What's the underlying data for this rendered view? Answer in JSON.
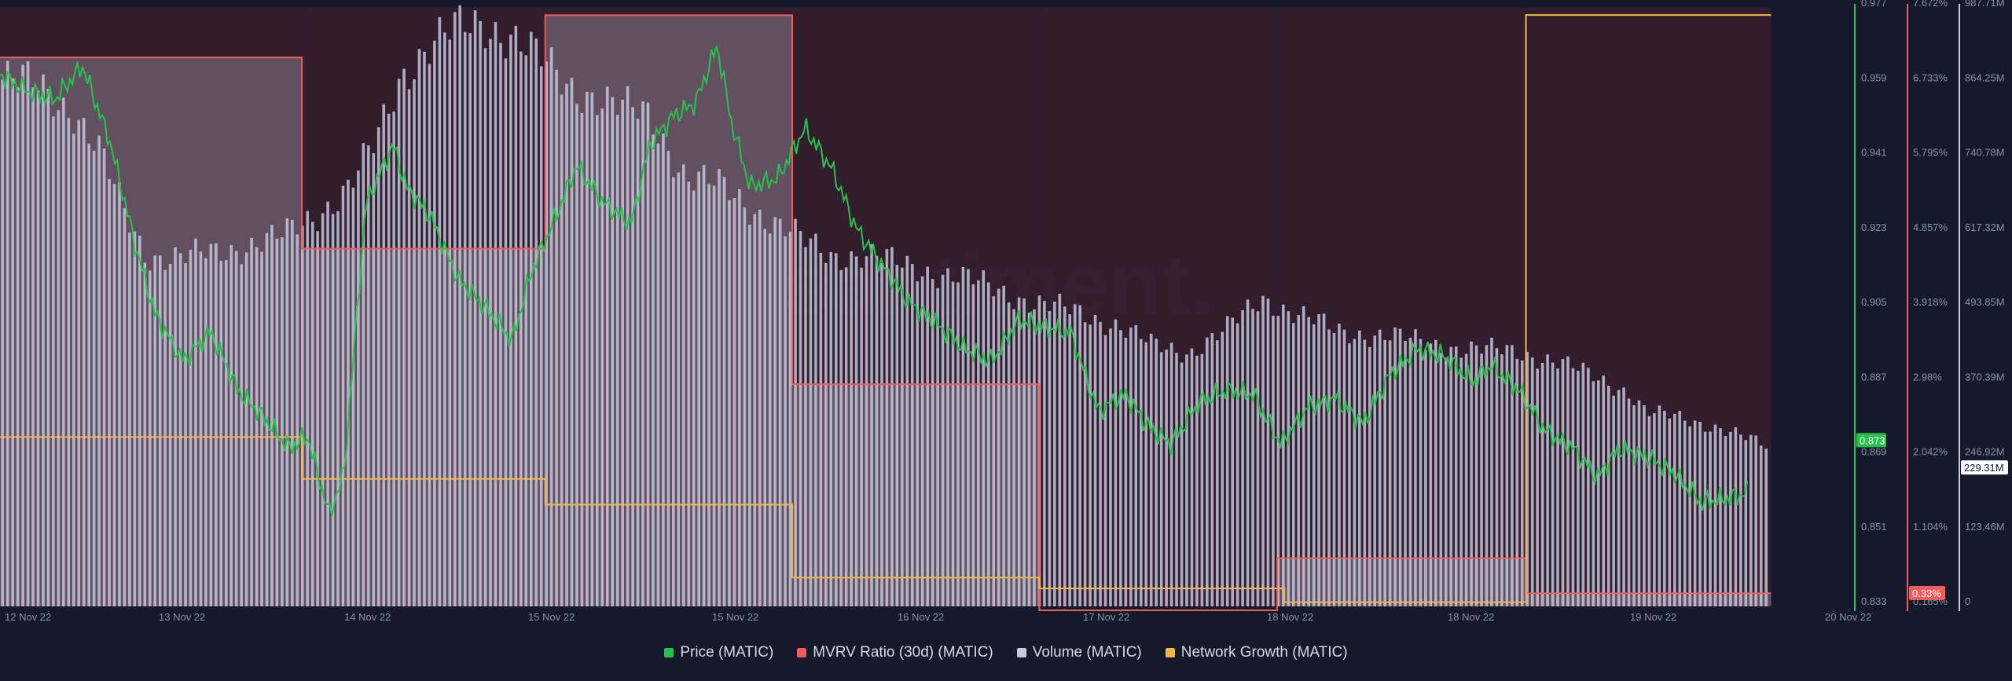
{
  "chart_data": {
    "type": "line",
    "watermark": "santiment.",
    "x_ticks": [
      "12 Nov 22",
      "13 Nov 22",
      "14 Nov 22",
      "15 Nov 22",
      "15 Nov 22",
      "16 Nov 22",
      "17 Nov 22",
      "18 Nov 22",
      "18 Nov 22",
      "19 Nov 22",
      "20 Nov 22"
    ],
    "axes": {
      "price": {
        "ticks": [
          "0.977",
          "0.959",
          "0.941",
          "0.923",
          "0.905",
          "0.887",
          "0.869",
          "0.851",
          "0.833"
        ],
        "ylim": [
          0.833,
          0.977
        ],
        "current_label": "0.873",
        "color": "#26c24d"
      },
      "mvrv": {
        "ticks": [
          "7.672%",
          "6.733%",
          "5.795%",
          "4.857%",
          "3.918%",
          "2.98%",
          "2.042%",
          "1.104%",
          "0.165%"
        ],
        "ylim": [
          0.165,
          7.672
        ],
        "current_label": "0.33%",
        "color": "#f25c5c"
      },
      "volume": {
        "ticks": [
          "987.71M",
          "864.25M",
          "740.78M",
          "617.32M",
          "493.85M",
          "370.39M",
          "246.92M",
          "123.46M",
          "0"
        ],
        "ylim": [
          0,
          987.71
        ],
        "current_label": "229.31M",
        "color": "#c8cbe0"
      }
    },
    "series": [
      {
        "name": "Price (MATIC)",
        "axis": "price",
        "color": "#26c24d",
        "x": [
          0.0,
          0.015,
          0.03,
          0.045,
          0.06,
          0.075,
          0.085,
          0.1,
          0.115,
          0.13,
          0.145,
          0.158,
          0.168,
          0.18,
          0.188,
          0.2,
          0.215,
          0.222,
          0.235,
          0.25,
          0.265,
          0.28,
          0.29,
          0.305,
          0.315,
          0.33,
          0.345,
          0.355,
          0.368,
          0.38,
          0.392,
          0.4,
          0.41,
          0.425,
          0.44,
          0.455,
          0.468,
          0.482,
          0.497,
          0.512,
          0.527,
          0.542,
          0.557,
          0.572,
          0.585,
          0.6,
          0.615,
          0.628,
          0.64,
          0.655,
          0.67,
          0.685,
          0.7,
          0.715,
          0.73,
          0.745,
          0.76,
          0.775,
          0.79,
          0.805,
          0.815,
          0.83,
          0.845,
          0.86,
          0.873,
          0.885,
          0.9,
          0.915,
          0.93,
          0.945,
          0.96,
          0.975,
          0.988,
          1.0
        ],
        "values": [
          0.961,
          0.957,
          0.955,
          0.963,
          0.945,
          0.918,
          0.903,
          0.892,
          0.899,
          0.885,
          0.878,
          0.871,
          0.874,
          0.855,
          0.865,
          0.93,
          0.944,
          0.934,
          0.927,
          0.912,
          0.905,
          0.897,
          0.913,
          0.928,
          0.939,
          0.93,
          0.925,
          0.944,
          0.951,
          0.954,
          0.968,
          0.949,
          0.934,
          0.936,
          0.948,
          0.938,
          0.924,
          0.915,
          0.906,
          0.901,
          0.895,
          0.892,
          0.902,
          0.9,
          0.899,
          0.88,
          0.884,
          0.876,
          0.872,
          0.882,
          0.885,
          0.884,
          0.872,
          0.881,
          0.883,
          0.877,
          0.889,
          0.895,
          0.893,
          0.887,
          0.891,
          0.885,
          0.875,
          0.871,
          0.864,
          0.871,
          0.869,
          0.865,
          0.858,
          0.859,
          0.861,
          0.869,
          0.878,
          0.874
        ]
      },
      {
        "name": "MVRV Ratio (30d) (MATIC)",
        "axis": "mvrv",
        "color": "#f25c5c",
        "steps": [
          [
            0.0,
            0.165,
            7.05
          ],
          [
            0.165,
            0.298,
            4.65
          ],
          [
            0.298,
            0.433,
            7.58
          ],
          [
            0.433,
            0.568,
            2.95
          ],
          [
            0.568,
            0.698,
            -0.1
          ],
          [
            0.698,
            0.834,
            0.77
          ],
          [
            0.834,
            0.968,
            0.33
          ]
        ]
      },
      {
        "name": "Volume (MATIC)",
        "axis": "volume",
        "color": "#c8cbe0",
        "x": [
          0.0,
          0.02,
          0.04,
          0.055,
          0.068,
          0.08,
          0.1,
          0.12,
          0.14,
          0.155,
          0.17,
          0.19,
          0.205,
          0.22,
          0.235,
          0.25,
          0.265,
          0.28,
          0.295,
          0.31,
          0.325,
          0.34,
          0.355,
          0.375,
          0.395,
          0.41,
          0.425,
          0.44,
          0.455,
          0.47,
          0.485,
          0.5,
          0.52,
          0.545,
          0.565,
          0.59,
          0.61,
          0.63,
          0.65,
          0.67,
          0.69,
          0.71,
          0.73,
          0.76,
          0.8,
          0.83,
          0.85,
          0.87,
          0.89,
          0.9,
          0.92,
          0.94,
          0.96,
          0.98,
          1.0
        ],
        "values": [
          870,
          860,
          820,
          745,
          650,
          580,
          575,
          585,
          600,
          610,
          640,
          690,
          760,
          880,
          930,
          950,
          960,
          945,
          900,
          860,
          845,
          820,
          810,
          710,
          690,
          660,
          630,
          600,
          580,
          580,
          570,
          560,
          545,
          525,
          500,
          485,
          465,
          430,
          420,
          455,
          510,
          480,
          455,
          445,
          425,
          420,
          405,
          380,
          355,
          320,
          310,
          295,
          270,
          245,
          240
        ]
      },
      {
        "name": "Network Growth (MATIC)",
        "axis": "network",
        "color": "#f5b642",
        "steps": [
          [
            0.0,
            0.165,
            0.283
          ],
          [
            0.165,
            0.298,
            0.213
          ],
          [
            0.298,
            0.433,
            0.17
          ],
          [
            0.433,
            0.568,
            0.048
          ],
          [
            0.568,
            0.702,
            0.03
          ],
          [
            0.702,
            0.834,
            0.007
          ],
          [
            0.834,
            0.968,
            0.988
          ]
        ]
      }
    ],
    "legend": [
      "Price (MATIC)",
      "MVRV Ratio (30d) (MATIC)",
      "Volume (MATIC)",
      "Network Growth (MATIC)"
    ],
    "legend_placement": "bottom-center",
    "grid": false
  }
}
